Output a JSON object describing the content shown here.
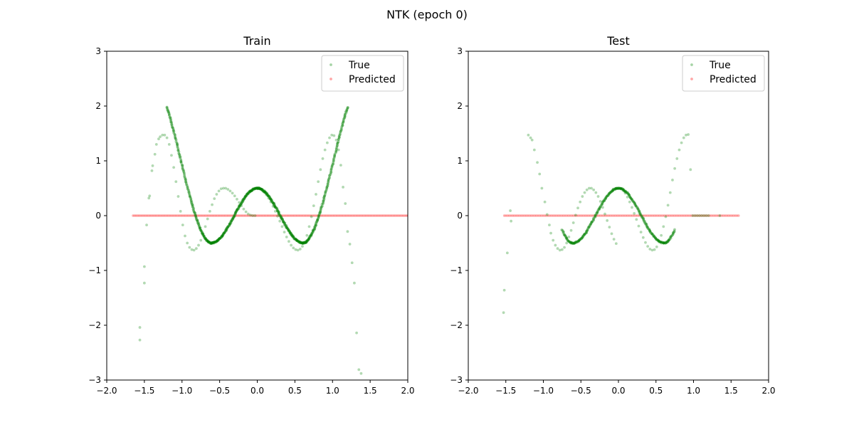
{
  "suptitle": "NTK (epoch 0)",
  "colors": {
    "true_series": "#008000",
    "predicted_series": "#ff0000",
    "axes": "#000000"
  },
  "chart_data": [
    {
      "type": "scatter",
      "title": "Train",
      "xlabel": "",
      "ylabel": "",
      "xlim": [
        -2.0,
        2.0
      ],
      "ylim": [
        -3,
        3
      ],
      "xticks": [
        "−2.0",
        "−1.5",
        "−1.0",
        "−0.5",
        "0.0",
        "0.5",
        "1.0",
        "1.5",
        "2.0"
      ],
      "yticks": [
        "−3",
        "−2",
        "−1",
        "0",
        "1",
        "2",
        "3"
      ],
      "grid": false,
      "legend": {
        "placement": "top-right",
        "entries": [
          "True",
          "Predicted"
        ]
      },
      "series": [
        {
          "name": "True",
          "color": "#008000",
          "curve": {
            "x_range": [
              -1.2,
              1.2
            ],
            "points": 240,
            "formula": "0.5*cos(5x)*... sampled"
          },
          "x": [
            -1.56,
            -1.56,
            -1.5,
            -1.5,
            -1.47,
            -1.44,
            -1.43,
            -1.4,
            -1.39,
            -1.36,
            -1.34,
            -1.31,
            -1.29,
            -1.26,
            -1.23,
            -1.2,
            -1.17,
            -1.14,
            -1.11,
            -1.08,
            -1.05,
            -1.02,
            -0.99,
            -0.96,
            -0.93,
            -0.9,
            -0.87,
            -0.84,
            -0.81,
            -0.78,
            -0.75,
            -0.72,
            -0.69,
            -0.66,
            -0.63,
            -0.6,
            -0.57,
            -0.54,
            -0.51,
            -0.48,
            -0.45,
            -0.42,
            -0.39,
            -0.36,
            -0.33,
            -0.3,
            -0.27,
            -0.24,
            -0.21,
            -0.18,
            -0.15,
            -0.12,
            -0.09,
            -0.06,
            -0.03,
            0.0,
            0.03,
            0.06,
            0.09,
            0.12,
            0.15,
            0.18,
            0.21,
            0.24,
            0.27,
            0.3,
            0.33,
            0.36,
            0.39,
            0.42,
            0.45,
            0.48,
            0.51,
            0.54,
            0.57,
            0.6,
            0.63,
            0.66,
            0.69,
            0.72,
            0.75,
            0.78,
            0.81,
            0.84,
            0.87,
            0.9,
            0.93,
            0.96,
            0.99,
            1.02,
            1.05,
            1.08,
            1.11,
            1.14,
            1.17,
            1.2,
            1.23,
            1.26,
            1.29,
            1.32,
            1.35,
            1.38,
            1.41,
            1.44,
            1.46,
            1.48,
            1.5,
            1.51,
            1.53,
            1.57,
            1.58
          ],
          "y": [
            -2.27,
            -2.04,
            -1.23,
            -0.93,
            -0.17,
            0.32,
            0.36,
            0.82,
            0.91,
            1.12,
            1.3,
            1.4,
            1.44,
            1.47,
            1.47,
            1.42,
            1.3,
            1.1,
            0.88,
            0.62,
            0.35,
            0.08,
            -0.17,
            -0.37,
            -0.5,
            -0.58,
            -0.62,
            -0.63,
            -0.6,
            -0.54,
            -0.45,
            -0.33,
            -0.2,
            -0.06,
            0.08,
            0.2,
            0.31,
            0.39,
            0.45,
            0.49,
            0.5,
            0.5,
            0.48,
            0.45,
            0.41,
            0.36,
            0.3,
            0.24,
            0.18,
            0.12,
            0.07,
            0.03,
            0.01,
            0.0,
            0.0,
            0.5,
            0.49,
            0.47,
            0.43,
            0.38,
            0.32,
            0.25,
            0.17,
            0.08,
            -0.01,
            -0.1,
            -0.2,
            -0.3,
            -0.39,
            -0.47,
            -0.54,
            -0.59,
            -0.62,
            -0.63,
            -0.61,
            -0.56,
            -0.48,
            -0.36,
            -0.2,
            -0.02,
            0.18,
            0.39,
            0.62,
            0.84,
            1.04,
            1.2,
            1.33,
            1.42,
            1.47,
            1.46,
            1.38,
            1.2,
            0.92,
            0.52,
            0.22,
            -0.29,
            -0.52,
            -0.86,
            -1.23,
            -2.14,
            -2.81,
            -2.88,
            0.0,
            0.0,
            0.0,
            0.0,
            0.0,
            0.0,
            0.0,
            0.0,
            0.0
          ]
        },
        {
          "name": "Predicted",
          "color": "#ff0000",
          "x_range": [
            -1.65,
            2.0
          ],
          "y": 0.0
        }
      ]
    },
    {
      "type": "scatter",
      "title": "Test",
      "xlabel": "",
      "ylabel": "",
      "xlim": [
        -2.0,
        2.0
      ],
      "ylim": [
        -3,
        3
      ],
      "xticks": [
        "−2.0",
        "−1.5",
        "−1.0",
        "−0.5",
        "0.0",
        "0.5",
        "1.0",
        "1.5",
        "2.0"
      ],
      "yticks": [
        "−3",
        "−2",
        "−1",
        "0",
        "1",
        "2",
        "3"
      ],
      "grid": false,
      "legend": {
        "placement": "top-right",
        "entries": [
          "True",
          "Predicted"
        ]
      },
      "series": [
        {
          "name": "True",
          "color": "#008000",
          "x": [
            -1.53,
            -1.52,
            -1.48,
            -1.44,
            -1.43,
            -1.2,
            -1.17,
            -1.15,
            -1.12,
            -1.08,
            -1.05,
            -1.02,
            -0.98,
            -0.95,
            -0.92,
            -0.9,
            -0.87,
            -0.84,
            -0.81,
            -0.78,
            -0.75,
            -0.72,
            -0.69,
            -0.66,
            -0.63,
            -0.6,
            -0.57,
            -0.54,
            -0.51,
            -0.48,
            -0.45,
            -0.42,
            -0.39,
            -0.36,
            -0.33,
            -0.3,
            -0.27,
            -0.24,
            -0.21,
            -0.18,
            -0.15,
            -0.12,
            -0.09,
            -0.06,
            -0.03,
            0.0,
            0.03,
            0.06,
            0.09,
            0.12,
            0.15,
            0.18,
            0.21,
            0.24,
            0.27,
            0.3,
            0.33,
            0.36,
            0.39,
            0.42,
            0.45,
            0.48,
            0.51,
            0.54,
            0.57,
            0.6,
            0.63,
            0.66,
            0.69,
            0.72,
            0.75,
            0.78,
            0.81,
            0.84,
            0.87,
            0.9,
            0.93,
            0.96,
            0.99,
            1.02,
            1.05,
            1.08,
            1.11,
            1.14,
            1.17,
            1.2,
            1.35
          ],
          "y": [
            -1.77,
            -1.36,
            -0.68,
            0.09,
            -0.1,
            1.47,
            1.42,
            1.38,
            1.2,
            0.97,
            0.76,
            0.5,
            0.25,
            0.02,
            -0.17,
            -0.32,
            -0.45,
            -0.54,
            -0.6,
            -0.63,
            -0.62,
            -0.58,
            -0.5,
            -0.39,
            -0.27,
            -0.13,
            0.01,
            0.14,
            0.25,
            0.35,
            0.42,
            0.47,
            0.5,
            0.5,
            0.47,
            0.42,
            0.35,
            0.26,
            0.15,
            0.03,
            -0.09,
            -0.21,
            -0.33,
            -0.43,
            -0.51,
            0.5,
            0.49,
            0.46,
            0.41,
            0.34,
            0.25,
            0.15,
            0.04,
            -0.07,
            -0.19,
            -0.3,
            -0.4,
            -0.49,
            -0.56,
            -0.61,
            -0.63,
            -0.62,
            -0.57,
            -0.48,
            -0.36,
            -0.2,
            -0.02,
            0.19,
            0.42,
            0.65,
            0.86,
            1.04,
            1.2,
            1.33,
            1.42,
            1.47,
            1.48,
            0.84,
            0.0,
            0.0,
            0.0,
            0.0,
            0.0,
            0.0,
            0.0,
            0.0,
            0.0
          ]
        },
        {
          "name": "Predicted",
          "color": "#ff0000",
          "x_range": [
            -1.52,
            1.6
          ],
          "y": 0.0
        }
      ]
    }
  ]
}
